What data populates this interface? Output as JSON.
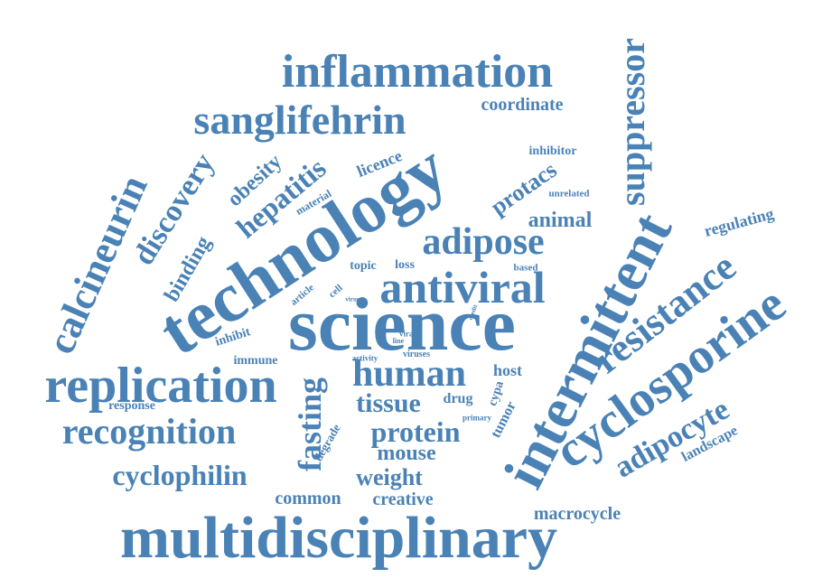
{
  "style": {
    "word_color": "#4a82b6",
    "background": "#ffffff"
  },
  "words": [
    "multidisciplinary",
    "technology",
    "science",
    "intermittent",
    "cyclosporine",
    "inflammation",
    "sanglifehrin",
    "replication",
    "recognition",
    "antiviral",
    "calcineurin",
    "resistance",
    "human",
    "adipose",
    "suppressor",
    "adipocyte",
    "hepatitis",
    "discovery",
    "protein",
    "cyclophilin",
    "fasting",
    "tissue",
    "binding",
    "obesity",
    "weight",
    "mouse",
    "protacs",
    "animal",
    "coordinate",
    "landscape",
    "macrocycle",
    "common",
    "creative",
    "regulating",
    "licence",
    "host",
    "drug",
    "tumor",
    "inhibitor",
    "immune",
    "inhibit",
    "response",
    "topic",
    "loss",
    "cypa",
    "degrade",
    "based",
    "material",
    "unrelated",
    "article",
    "cell",
    "viruses",
    "activity",
    "primary",
    "viral",
    "line",
    "virus",
    "credit"
  ]
}
